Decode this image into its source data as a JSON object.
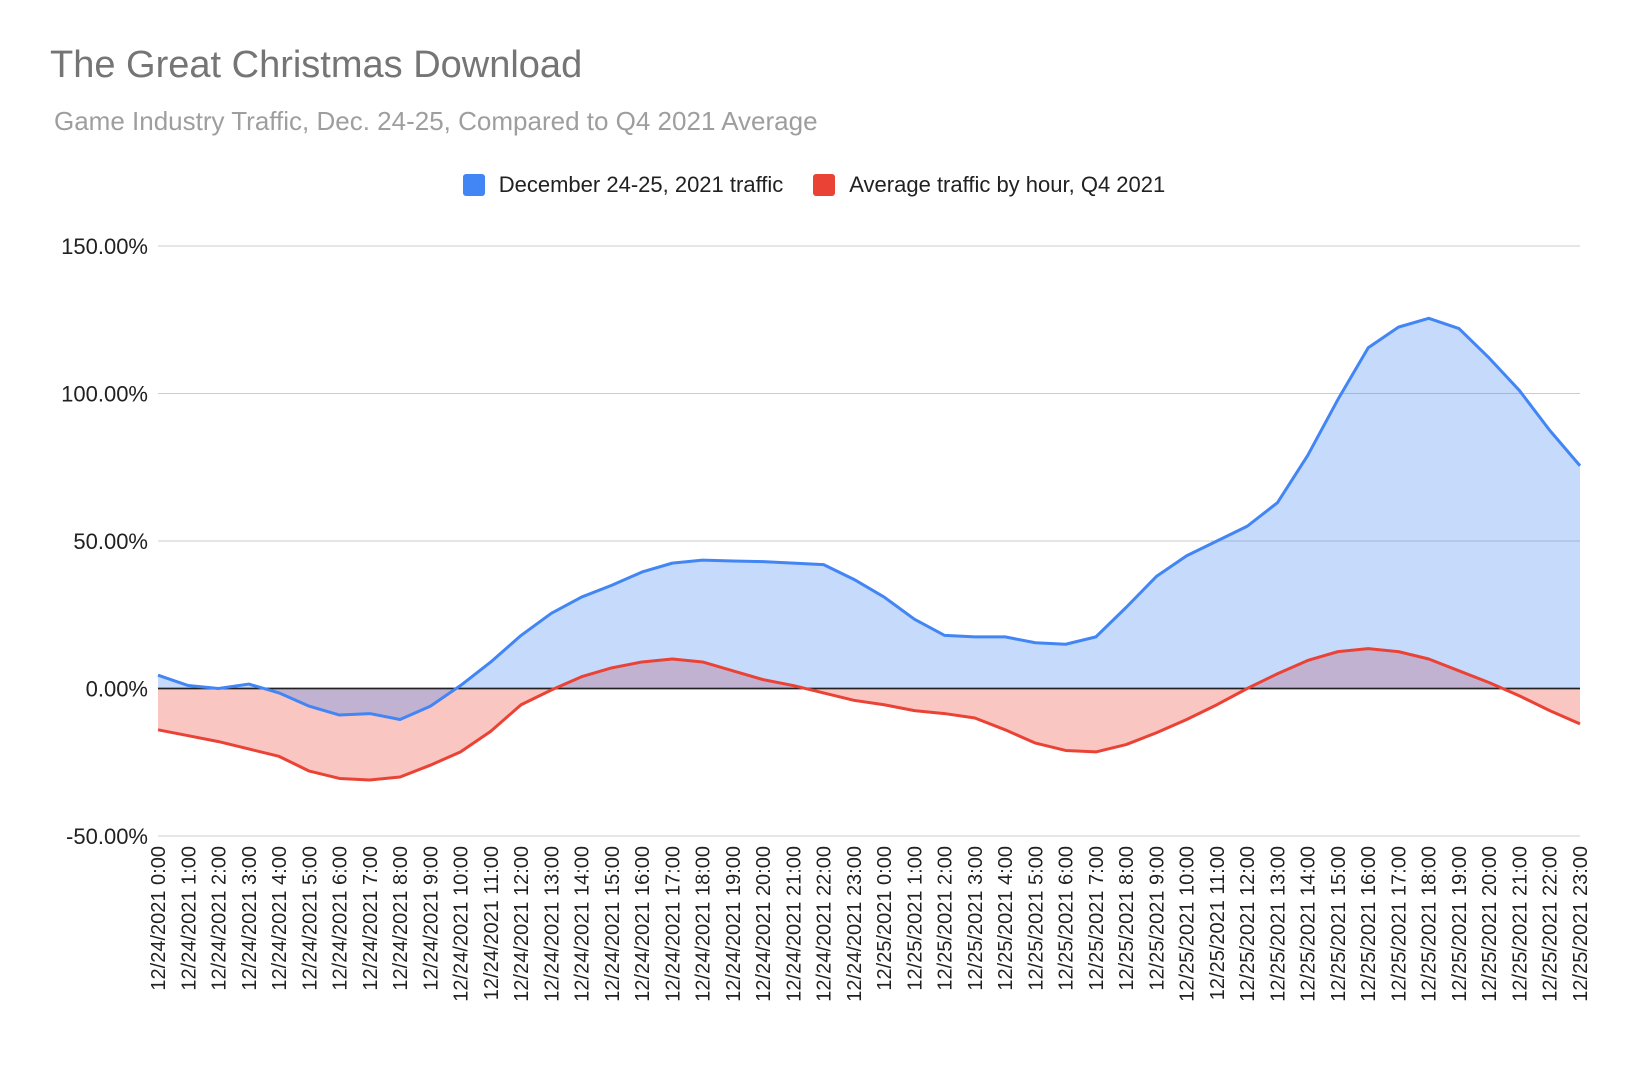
{
  "chart_data": {
    "type": "area",
    "title": "The Great Christmas Download",
    "subtitle": "Game Industry Traffic, Dec. 24-25, Compared to Q4 2021 Average",
    "xlabel": "",
    "ylabel": "",
    "ylim": [
      -50,
      150
    ],
    "yticks": [
      150,
      100,
      50,
      0,
      -50
    ],
    "ytick_labels": [
      "150.00%",
      "100.00%",
      "50.00%",
      "0.00%",
      "-50.00%"
    ],
    "legend_position": "top-center",
    "categories": [
      "12/24/2021 0:00",
      "12/24/2021 1:00",
      "12/24/2021 2:00",
      "12/24/2021 3:00",
      "12/24/2021 4:00",
      "12/24/2021 5:00",
      "12/24/2021 6:00",
      "12/24/2021 7:00",
      "12/24/2021 8:00",
      "12/24/2021 9:00",
      "12/24/2021 10:00",
      "12/24/2021 11:00",
      "12/24/2021 12:00",
      "12/24/2021 13:00",
      "12/24/2021 14:00",
      "12/24/2021 15:00",
      "12/24/2021 16:00",
      "12/24/2021 17:00",
      "12/24/2021 18:00",
      "12/24/2021 19:00",
      "12/24/2021 20:00",
      "12/24/2021 21:00",
      "12/24/2021 22:00",
      "12/24/2021 23:00",
      "12/25/2021 0:00",
      "12/25/2021 1:00",
      "12/25/2021 2:00",
      "12/25/2021 3:00",
      "12/25/2021 4:00",
      "12/25/2021 5:00",
      "12/25/2021 6:00",
      "12/25/2021 7:00",
      "12/25/2021 8:00",
      "12/25/2021 9:00",
      "12/25/2021 10:00",
      "12/25/2021 11:00",
      "12/25/2021 12:00",
      "12/25/2021 13:00",
      "12/25/2021 14:00",
      "12/25/2021 15:00",
      "12/25/2021 16:00",
      "12/25/2021 17:00",
      "12/25/2021 18:00",
      "12/25/2021 19:00",
      "12/25/2021 20:00",
      "12/25/2021 21:00",
      "12/25/2021 22:00",
      "12/25/2021 23:00"
    ],
    "series": [
      {
        "name": "December 24-25, 2021 traffic",
        "color": "#4285f4",
        "fill": "#c6d9f7",
        "values": [
          4.5,
          1.0,
          0.0,
          1.5,
          -1.5,
          -6.0,
          -9.0,
          -8.5,
          -10.5,
          -6.0,
          1.0,
          9.0,
          18.0,
          25.5,
          31.0,
          35.0,
          39.5,
          42.5,
          43.5,
          43.2,
          43.0,
          42.5,
          42.0,
          37.0,
          31.0,
          23.5,
          18.0,
          17.5,
          17.5,
          15.5,
          15.0,
          17.5,
          27.5,
          38.0,
          45.0,
          50.0,
          55.0,
          63.0,
          79.0,
          98.0,
          115.5,
          122.5,
          125.5,
          122.0,
          112.0,
          101.0,
          87.5,
          75.5
        ]
      },
      {
        "name": "Average traffic by hour, Q4 2021",
        "color": "#ea4335",
        "fill": "#f6c5c1",
        "values": [
          -14.0,
          -16.0,
          -18.0,
          -20.5,
          -23.0,
          -28.0,
          -30.5,
          -31.0,
          -30.0,
          -26.0,
          -21.5,
          -14.5,
          -5.5,
          -0.5,
          4.0,
          7.0,
          9.0,
          10.0,
          9.0,
          6.0,
          3.0,
          1.0,
          -1.5,
          -4.0,
          -5.5,
          -7.5,
          -8.5,
          -10.0,
          -14.0,
          -18.5,
          -21.0,
          -21.5,
          -19.0,
          -15.0,
          -10.5,
          -5.5,
          0.0,
          5.0,
          9.5,
          12.5,
          13.5,
          12.5,
          10.0,
          6.0,
          2.0,
          -2.5,
          -7.5,
          -12.0
        ]
      }
    ]
  }
}
